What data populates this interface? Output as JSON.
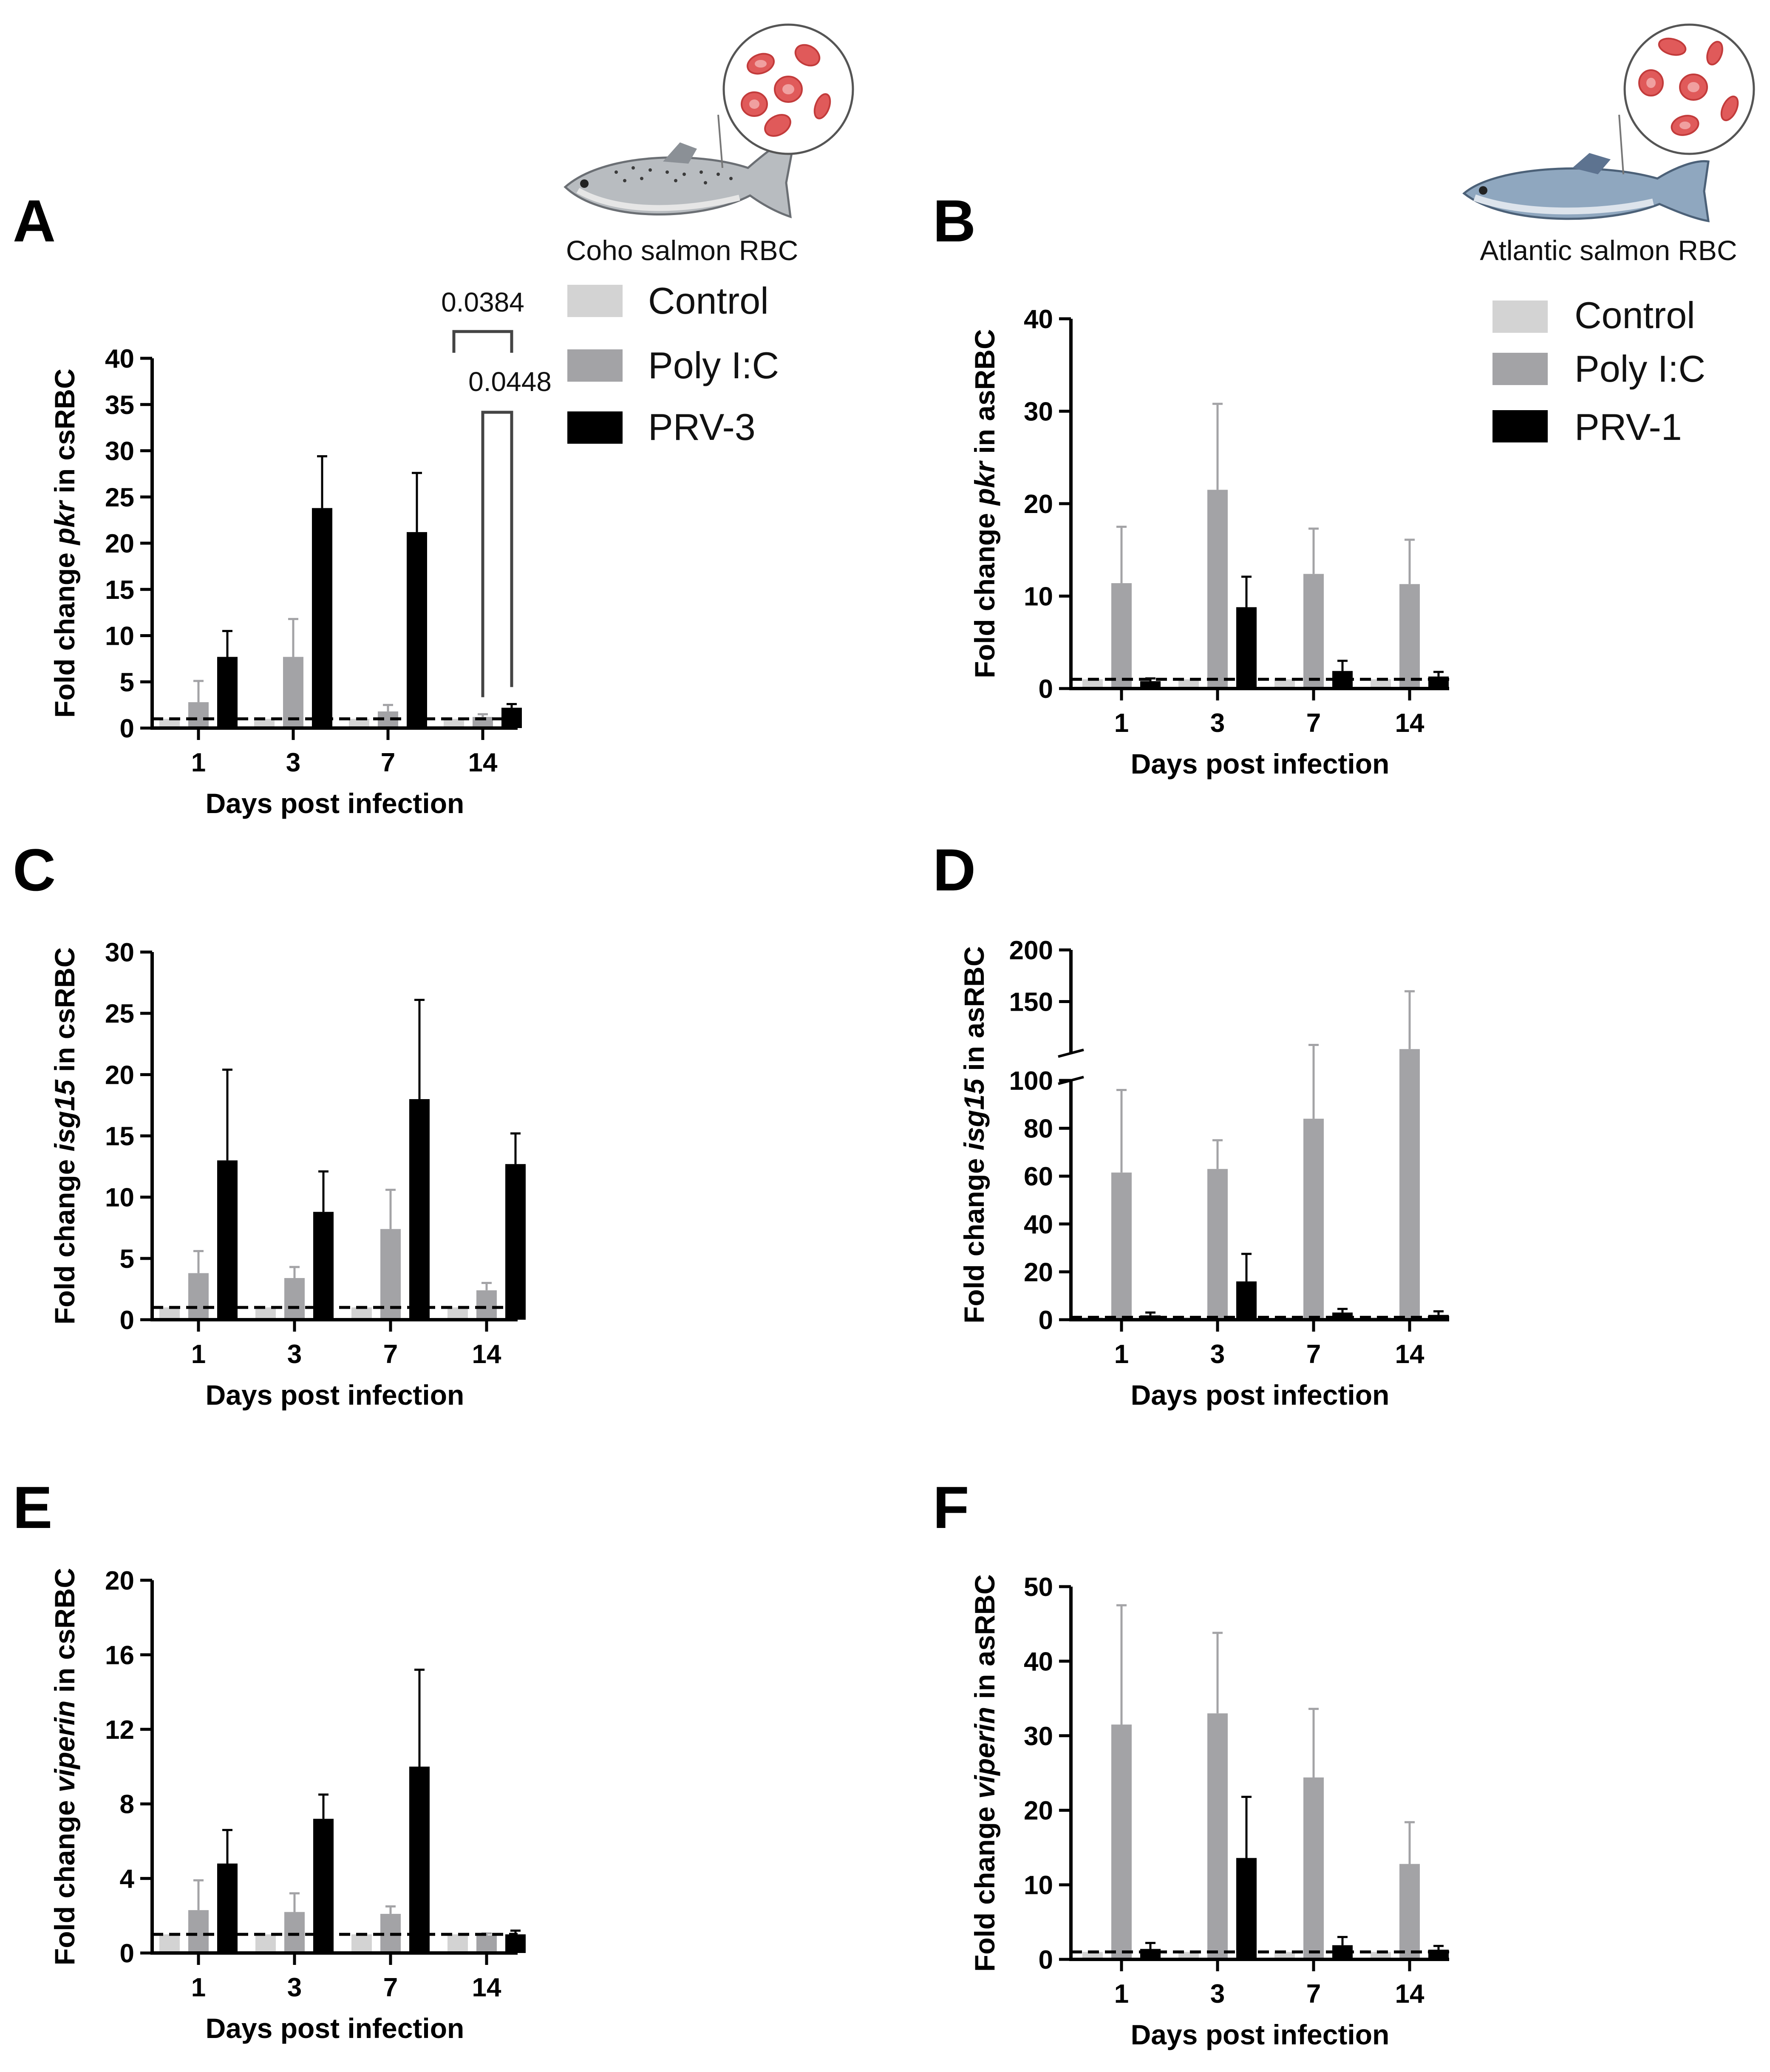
{
  "figure": {
    "panels": [
      "A",
      "B",
      "C",
      "D",
      "E",
      "F"
    ],
    "xlabel": "Days post infection",
    "colors": {
      "control": "#d3d3d3",
      "polyic": "#a3a3a6",
      "prv": "#000000"
    },
    "coho": {
      "caption": "Coho salmon RBC",
      "legend": [
        "Control",
        "Poly I:C",
        "PRV-3"
      ],
      "fish_icon": "coho-salmon-illustration",
      "cell_icon": "red-blood-cells-illustration"
    },
    "atlantic": {
      "caption": "Atlantic salmon RBC",
      "legend": [
        "Control",
        "Poly I:C",
        "PRV-1"
      ],
      "fish_icon": "atlantic-salmon-illustration",
      "cell_icon": "red-blood-cells-illustration"
    }
  },
  "chart_data": [
    {
      "panel": "A",
      "type": "bar",
      "title": "",
      "ylabel_pre": "Fold change ",
      "ylabel_gene": "pkr",
      "ylabel_post": " in csRBC",
      "xlabel": "Days post infection",
      "categories": [
        "1",
        "3",
        "7",
        "14"
      ],
      "ylim": [
        0,
        40
      ],
      "yticks": [
        0,
        5,
        10,
        15,
        20,
        25,
        30,
        35,
        40
      ],
      "baseline": 1,
      "series": [
        {
          "name": "Control",
          "values": [
            1,
            1,
            1,
            1
          ],
          "errors": [
            0,
            0,
            0,
            0
          ]
        },
        {
          "name": "Poly I:C",
          "values": [
            2.8,
            7.7,
            1.8,
            1.2
          ],
          "errors": [
            2.3,
            4.1,
            0.7,
            0.3
          ]
        },
        {
          "name": "PRV-3",
          "values": [
            7.7,
            23.8,
            21.2,
            2.2
          ],
          "errors": [
            2.8,
            5.6,
            6.4,
            0.4
          ]
        }
      ],
      "annotations": [
        {
          "label": "0.0384",
          "from": [
            "14",
            "Control"
          ],
          "to": [
            "14",
            "PRV-3"
          ]
        },
        {
          "label": "0.0448",
          "from": [
            "14",
            "Poly I:C"
          ],
          "to": [
            "14",
            "PRV-3"
          ]
        }
      ]
    },
    {
      "panel": "B",
      "type": "bar",
      "title": "",
      "ylabel_pre": "Fold change ",
      "ylabel_gene": "pkr",
      "ylabel_post": " in asRBC",
      "xlabel": "Days post infection",
      "categories": [
        "1",
        "3",
        "7",
        "14"
      ],
      "ylim": [
        0,
        40
      ],
      "yticks": [
        0,
        10,
        20,
        30,
        40
      ],
      "baseline": 1,
      "series": [
        {
          "name": "Control",
          "values": [
            1,
            1,
            1,
            1
          ],
          "errors": [
            0,
            0,
            0,
            0
          ]
        },
        {
          "name": "Poly I:C",
          "values": [
            11.4,
            21.5,
            12.4,
            11.3
          ],
          "errors": [
            6.1,
            9.3,
            4.9,
            4.8
          ]
        },
        {
          "name": "PRV-1",
          "values": [
            0.8,
            8.8,
            1.9,
            1.3
          ],
          "errors": [
            0.3,
            3.3,
            1.1,
            0.5
          ]
        }
      ]
    },
    {
      "panel": "C",
      "type": "bar",
      "title": "",
      "ylabel_pre": "Fold change ",
      "ylabel_gene": "isg15",
      "ylabel_post": " in csRBC",
      "xlabel": "Days post infection",
      "categories": [
        "1",
        "3",
        "7",
        "14"
      ],
      "ylim": [
        0,
        30
      ],
      "yticks": [
        0,
        5,
        10,
        15,
        20,
        25,
        30
      ],
      "baseline": 1,
      "series": [
        {
          "name": "Control",
          "values": [
            1,
            1,
            1,
            1
          ],
          "errors": [
            0,
            0,
            0,
            0
          ]
        },
        {
          "name": "Poly I:C",
          "values": [
            3.8,
            3.4,
            7.4,
            2.4
          ],
          "errors": [
            1.8,
            0.9,
            3.2,
            0.6
          ]
        },
        {
          "name": "PRV-3",
          "values": [
            13.0,
            8.8,
            18.0,
            12.7
          ],
          "errors": [
            7.4,
            3.3,
            8.1,
            2.5
          ]
        }
      ]
    },
    {
      "panel": "D",
      "type": "bar",
      "title": "",
      "ylabel_pre": "Fold change ",
      "ylabel_gene": "isg15",
      "ylabel_post": " in asRBC",
      "xlabel": "Days post infection",
      "categories": [
        "1",
        "3",
        "7",
        "14"
      ],
      "ylim": [
        0,
        200
      ],
      "yticks": [
        0,
        20,
        40,
        60,
        80,
        100,
        150,
        200
      ],
      "axis_break": [
        100,
        100
      ],
      "baseline": 1,
      "series": [
        {
          "name": "Control",
          "values": [
            1,
            1,
            1,
            1
          ],
          "errors": [
            0,
            0,
            0,
            0
          ]
        },
        {
          "name": "Poly I:C",
          "values": [
            61.5,
            63.0,
            84.0,
            104.0
          ],
          "errors": [
            34.5,
            12.0,
            24.0,
            56.0
          ]
        },
        {
          "name": "PRV-1",
          "values": [
            1.8,
            16.0,
            3.0,
            2.0
          ],
          "errors": [
            1.2,
            11.5,
            1.5,
            1.5
          ]
        }
      ]
    },
    {
      "panel": "E",
      "type": "bar",
      "title": "",
      "ylabel_pre": "Fold change ",
      "ylabel_gene": "viperin",
      "ylabel_post": " in csRBC",
      "xlabel": "Days post infection",
      "categories": [
        "1",
        "3",
        "7",
        "14"
      ],
      "ylim": [
        0,
        20
      ],
      "yticks": [
        0,
        4,
        8,
        12,
        16,
        20
      ],
      "baseline": 1,
      "series": [
        {
          "name": "Control",
          "values": [
            1,
            1,
            1,
            1
          ],
          "errors": [
            0,
            0,
            0,
            0
          ]
        },
        {
          "name": "Poly I:C",
          "values": [
            2.3,
            2.2,
            2.1,
            0.95
          ],
          "errors": [
            1.6,
            1.0,
            0.4,
            0.1
          ]
        },
        {
          "name": "PRV-3",
          "values": [
            4.8,
            7.2,
            10.0,
            1.0
          ],
          "errors": [
            1.8,
            1.3,
            5.2,
            0.2
          ]
        }
      ]
    },
    {
      "panel": "F",
      "type": "bar",
      "title": "",
      "ylabel_pre": "Fold change ",
      "ylabel_gene": "viperin",
      "ylabel_post": " in asRBC",
      "xlabel": "Days post infection",
      "categories": [
        "1",
        "3",
        "7",
        "14"
      ],
      "ylim": [
        0,
        50
      ],
      "yticks": [
        0,
        10,
        20,
        30,
        40,
        50
      ],
      "baseline": 1,
      "series": [
        {
          "name": "Control",
          "values": [
            1,
            1,
            1,
            1
          ],
          "errors": [
            0,
            0,
            0,
            0
          ]
        },
        {
          "name": "Poly I:C",
          "values": [
            31.5,
            33.0,
            24.4,
            12.8
          ],
          "errors": [
            16.0,
            10.8,
            9.2,
            5.6
          ]
        },
        {
          "name": "PRV-1",
          "values": [
            1.4,
            13.6,
            1.9,
            1.3
          ],
          "errors": [
            0.8,
            8.2,
            1.1,
            0.5
          ]
        }
      ]
    }
  ]
}
